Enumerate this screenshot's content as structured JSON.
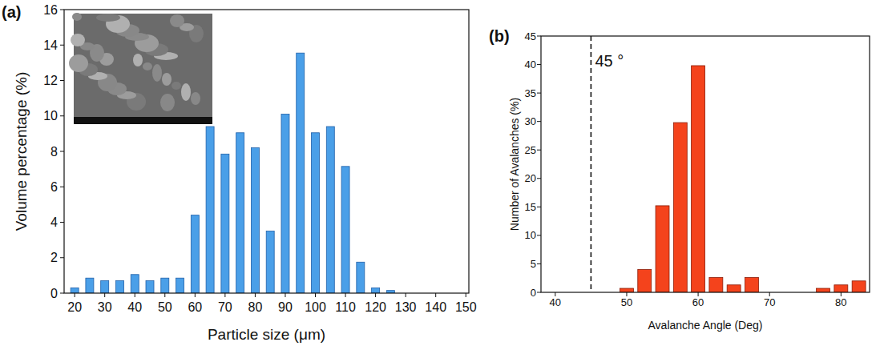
{
  "chart_data": [
    {
      "type": "bar",
      "label": "(a)",
      "x_label": "Particle size (μm)",
      "y_label": "Volume percentage (%)",
      "x": [
        20,
        25,
        30,
        35,
        40,
        45,
        50,
        55,
        60,
        65,
        70,
        75,
        80,
        85,
        90,
        95,
        100,
        105,
        110,
        115,
        120,
        125
      ],
      "values": [
        0.3,
        0.85,
        0.7,
        0.7,
        1.05,
        0.7,
        0.85,
        0.85,
        4.4,
        9.4,
        7.85,
        9.05,
        8.2,
        3.5,
        10.1,
        13.55,
        9.05,
        9.4,
        7.15,
        1.75,
        0.3,
        0.15
      ],
      "color": "#4a9fe8",
      "xlim": [
        16.5,
        151
      ],
      "ylim": [
        0,
        16
      ],
      "xticks": [
        20,
        30,
        40,
        50,
        60,
        70,
        80,
        90,
        100,
        110,
        120,
        130,
        140,
        150
      ],
      "yticks": [
        0,
        2,
        4,
        6,
        8,
        10,
        12,
        14,
        16
      ]
    },
    {
      "type": "histogram",
      "label": "(b)",
      "x_label": "Avalanche Angle (Deg)",
      "y_label": "Number of Avalanches (%)",
      "bins": [
        48.75,
        51.25,
        53.75,
        56.25,
        58.75,
        61.25,
        63.75,
        66.25,
        68.75,
        71.25,
        73.75,
        76.25,
        78.75,
        81.25,
        83.75
      ],
      "values": [
        0.7,
        4,
        15.2,
        29.8,
        39.8,
        2.6,
        1.3,
        2.6,
        0,
        0,
        0,
        0.7,
        1.3,
        2.0
      ],
      "color": "#f4431c",
      "xlim": [
        38,
        84
      ],
      "ylim": [
        0,
        45
      ],
      "xticks": [
        40,
        50,
        60,
        70,
        80
      ],
      "yticks": [
        0,
        5,
        10,
        15,
        20,
        25,
        30,
        35,
        40,
        45
      ],
      "annotations": [
        {
          "text": "45 °",
          "x": 45
        }
      ]
    }
  ]
}
